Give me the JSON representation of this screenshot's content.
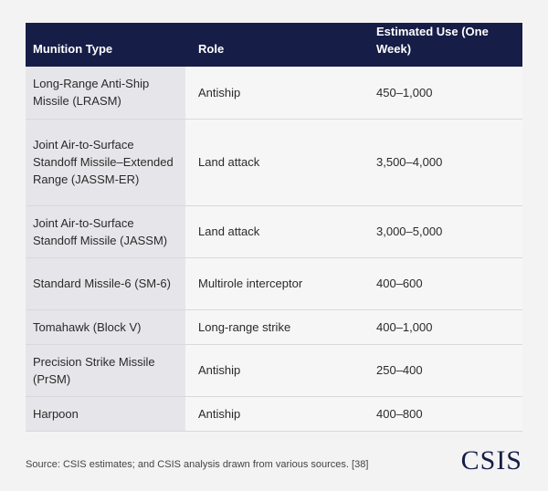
{
  "table": {
    "header": [
      "Munition Type",
      "Role",
      "Estimated Use (One Week)"
    ],
    "rows": [
      [
        "Long-Range Anti-Ship Missile (LRASM)",
        "Antiship",
        "450–1,000"
      ],
      [
        "Joint Air-to-Surface Standoff Missile–Extended Range (JASSM-ER)",
        "Land attack",
        "3,500–4,000"
      ],
      [
        "Joint Air-to-Surface Standoff Missile (JASSM)",
        "Land attack",
        "3,000–5,000"
      ],
      [
        "Standard Missile-6 (SM-6)",
        "Multirole interceptor",
        "400–600"
      ],
      [
        "Tomahawk (Block V)",
        "Long-range strike",
        "400–1,000"
      ],
      [
        "Precision Strike Missile (PrSM)",
        "Antiship",
        "250–400"
      ],
      [
        "Harpoon",
        "Antiship",
        "400–800"
      ]
    ]
  },
  "footer": {
    "source": "Source: CSIS estimates; and CSIS analysis drawn from various sources. [38]",
    "logo": "CSIS"
  }
}
